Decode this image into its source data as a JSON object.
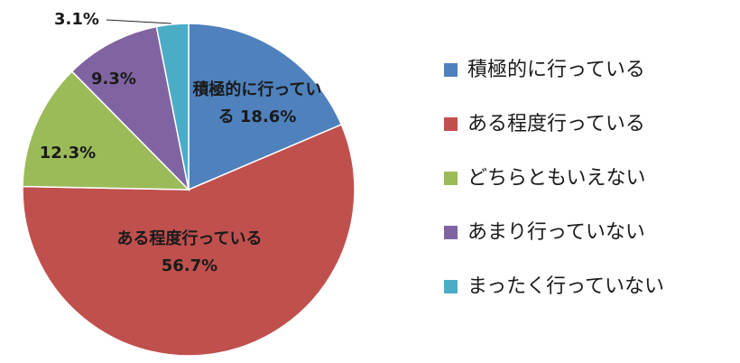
{
  "chart_data": {
    "type": "pie",
    "categories": [
      "積極的に行っている",
      "ある程度行っている",
      "どちらともいえない",
      "あまり行っていない",
      "まったく行っていない"
    ],
    "values": [
      18.6,
      56.7,
      12.3,
      9.3,
      3.1
    ],
    "value_labels": [
      "積極的に行っている 18.6%",
      "ある程度行っている 56.7%",
      "12.3%",
      "9.3%",
      "3.1%"
    ],
    "colors": [
      "#4f81bd",
      "#c0504d",
      "#9bbb59",
      "#8064a2",
      "#4bacc6"
    ],
    "legend": "right"
  }
}
